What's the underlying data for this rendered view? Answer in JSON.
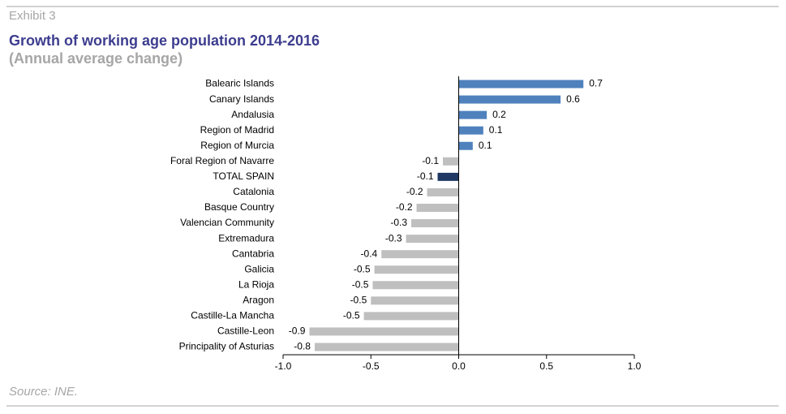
{
  "exhibit": "Exhibit 3",
  "chart_data": {
    "type": "bar",
    "orientation": "horizontal",
    "title": "Growth of working age population 2014-2016",
    "subtitle": "(Annual average change)",
    "categories": [
      "Balearic Islands",
      "Canary Islands",
      "Andalusia",
      "Region of Madrid",
      "Region of Murcia",
      "Foral Region of Navarre",
      "TOTAL SPAIN",
      "Catalonia",
      "Basque Country",
      "Valencian Community",
      "Extremadura",
      "Cantabria",
      "Galicia",
      "La Rioja",
      "Aragon",
      "Castille-La Mancha",
      "Castille-Leon",
      "Principality of Asturias"
    ],
    "values": [
      0.71,
      0.58,
      0.16,
      0.14,
      0.08,
      -0.09,
      -0.12,
      -0.18,
      -0.24,
      -0.27,
      -0.3,
      -0.44,
      -0.48,
      -0.49,
      -0.5,
      -0.54,
      -0.85,
      -0.82
    ],
    "value_labels": [
      "0.7",
      "0.6",
      "0.2",
      "0.1",
      "0.1",
      "-0.1",
      "-0.1",
      "-0.2",
      "-0.2",
      "-0.3",
      "-0.3",
      "-0.4",
      "-0.5",
      "-0.5",
      "-0.5",
      "-0.5",
      "-0.9",
      "-0.8"
    ],
    "colors": [
      "#4f81bd",
      "#4f81bd",
      "#4f81bd",
      "#4f81bd",
      "#4f81bd",
      "#bfbfbf",
      "#1f3864",
      "#bfbfbf",
      "#bfbfbf",
      "#bfbfbf",
      "#bfbfbf",
      "#bfbfbf",
      "#bfbfbf",
      "#bfbfbf",
      "#bfbfbf",
      "#bfbfbf",
      "#bfbfbf",
      "#bfbfbf"
    ],
    "xlim": [
      -1,
      1
    ],
    "xticks": [
      {
        "value": -1,
        "label": "-1.0"
      },
      -0.5,
      {
        "value": 0,
        "label": "0.0"
      },
      0.5,
      {
        "value": 1,
        "label": "1.0"
      }
    ],
    "source": "Source: INE."
  }
}
